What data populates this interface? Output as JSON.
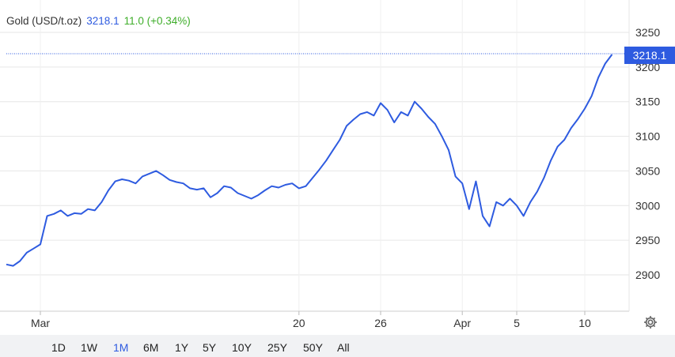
{
  "header": {
    "symbol": "Gold (USD/t.oz)",
    "last": "3218.1",
    "change": "11.0 (+0.34%)"
  },
  "price_tag": "3218.1",
  "ranges": [
    {
      "label": "1D",
      "active": false
    },
    {
      "label": "1W",
      "active": false
    },
    {
      "label": "1M",
      "active": true
    },
    {
      "label": "6M",
      "active": false
    },
    {
      "label": "1Y",
      "active": false
    },
    {
      "label": "5Y",
      "active": false
    },
    {
      "label": "10Y",
      "active": false
    },
    {
      "label": "25Y",
      "active": false
    },
    {
      "label": "50Y",
      "active": false
    },
    {
      "label": "All",
      "active": false
    }
  ],
  "icons": {
    "settings": "gear-icon"
  },
  "colors": {
    "line": "#2e5be0",
    "tag_bg": "#2e5be0",
    "change": "#3fae2a"
  },
  "chart_data": {
    "type": "line",
    "grid": true,
    "ylim": [
      2850,
      3270
    ],
    "y_ticks": [
      2900,
      2950,
      3000,
      3050,
      3100,
      3150,
      3200,
      3250
    ],
    "y_tick_labels": [
      "2900",
      "2950",
      "3000",
      "3050",
      "3100",
      "3150",
      "3200",
      "3250"
    ],
    "x_ticks": [
      {
        "label": "Mar",
        "day": 0
      },
      {
        "label": "20",
        "day": 19
      },
      {
        "label": "26",
        "day": 25
      },
      {
        "label": "Apr",
        "day": 31
      },
      {
        "label": "5",
        "day": 35
      },
      {
        "label": "10",
        "day": 40
      }
    ],
    "xlim": [
      -2.5,
      42.5
    ],
    "x_days": [
      -2.5,
      -2.0,
      -1.5,
      -1.0,
      -0.5,
      0.0,
      0.5,
      1.0,
      1.5,
      2.0,
      2.5,
      3.0,
      3.5,
      4.0,
      4.5,
      5.0,
      5.5,
      6.0,
      6.5,
      7.0,
      7.5,
      8.0,
      8.5,
      9.0,
      9.5,
      10.0,
      10.5,
      11.0,
      11.5,
      12.0,
      12.5,
      13.0,
      13.5,
      14.0,
      14.5,
      15.0,
      15.5,
      16.0,
      16.5,
      17.0,
      17.5,
      18.0,
      18.5,
      19.0,
      19.5,
      20.0,
      20.5,
      21.0,
      21.5,
      22.0,
      22.5,
      23.0,
      23.5,
      24.0,
      24.5,
      25.0,
      25.5,
      26.0,
      26.5,
      27.0,
      27.5,
      28.0,
      28.5,
      29.0,
      29.5,
      30.0,
      30.5,
      31.0,
      31.5,
      32.0,
      32.5,
      33.0,
      33.5,
      34.0,
      34.5,
      35.0,
      35.5,
      36.0,
      36.5,
      37.0,
      37.5,
      38.0,
      38.5,
      39.0,
      39.5,
      40.0,
      40.5,
      41.0,
      41.5,
      42.0
    ],
    "values": [
      2915,
      2913,
      2920,
      2932,
      2938,
      2944,
      2985,
      2988,
      2993,
      2985,
      2989,
      2988,
      2995,
      2993,
      3005,
      3022,
      3035,
      3038,
      3036,
      3032,
      3042,
      3046,
      3050,
      3044,
      3037,
      3034,
      3032,
      3025,
      3023,
      3025,
      3012,
      3018,
      3028,
      3026,
      3018,
      3014,
      3010,
      3015,
      3022,
      3028,
      3026,
      3030,
      3032,
      3025,
      3028,
      3040,
      3052,
      3065,
      3080,
      3095,
      3115,
      3124,
      3132,
      3135,
      3130,
      3148,
      3138,
      3120,
      3135,
      3130,
      3150,
      3140,
      3128,
      3118,
      3100,
      3080,
      3042,
      3032,
      2995,
      3035,
      2985,
      2970,
      3005,
      3000,
      3010,
      3000,
      2985,
      3005,
      3020,
      3040,
      3065,
      3085,
      3095,
      3112,
      3125,
      3140,
      3158,
      3185,
      3205,
      3218.1
    ]
  }
}
